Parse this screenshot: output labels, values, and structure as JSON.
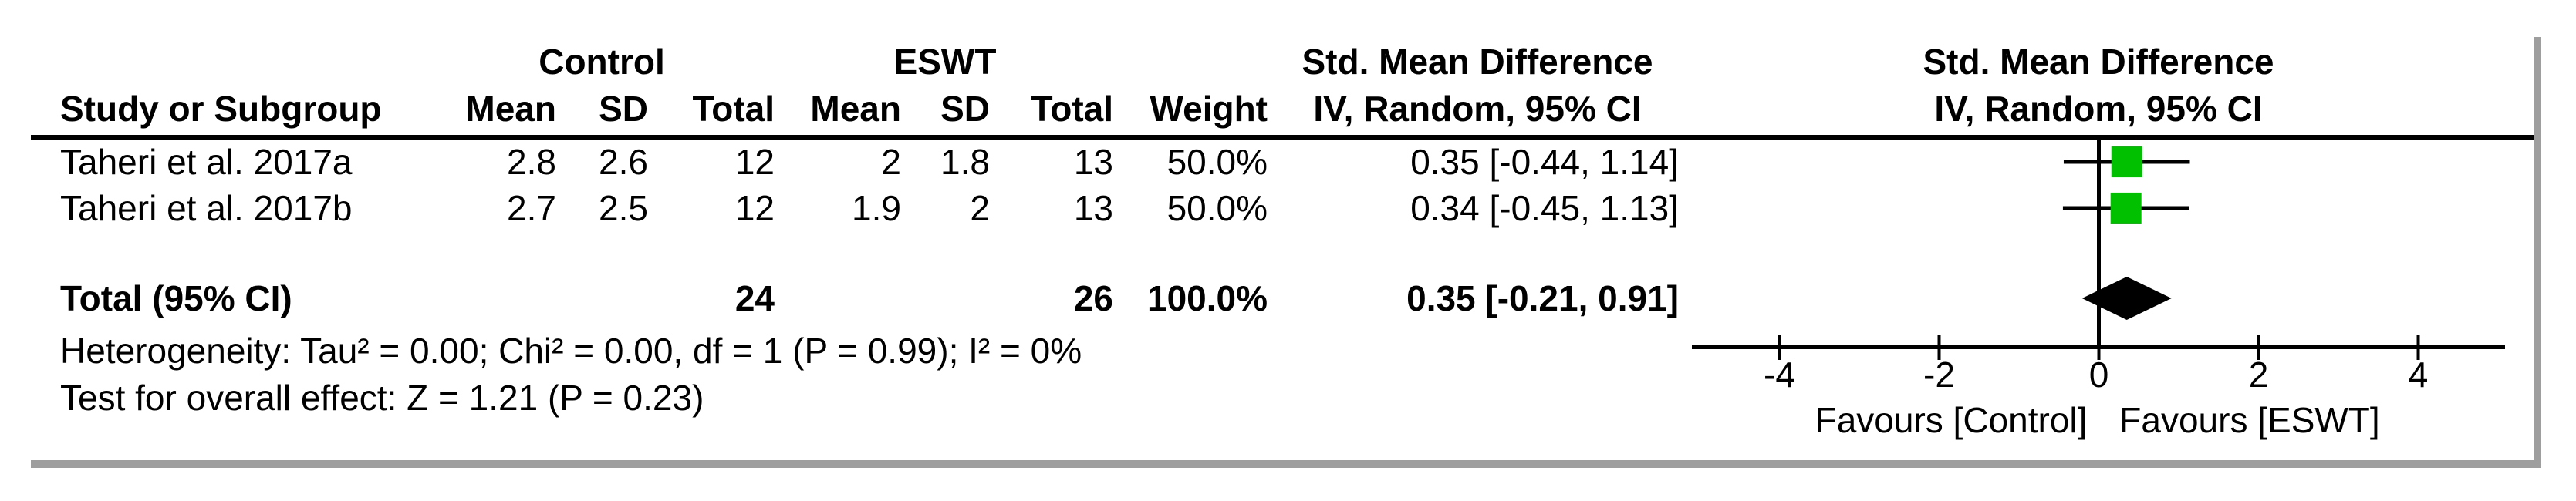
{
  "table": {
    "group_headers": {
      "group1": "Control",
      "group2": "ESWT"
    },
    "effect_header": {
      "line1": "Std. Mean Difference",
      "line2": "IV, Random, 95% CI"
    },
    "col_headers": {
      "study": "Study or Subgroup",
      "mean": "Mean",
      "sd": "SD",
      "total": "Total",
      "weight": "Weight"
    },
    "rows": [
      {
        "study": "Taheri et al. 2017a",
        "c_mean": "2.8",
        "c_sd": "2.6",
        "c_total": "12",
        "e_mean": "2",
        "e_sd": "1.8",
        "e_total": "13",
        "weight": "50.0%",
        "ci": "0.35 [-0.44, 1.14]"
      },
      {
        "study": "Taheri et al. 2017b",
        "c_mean": "2.7",
        "c_sd": "2.5",
        "c_total": "12",
        "e_mean": "1.9",
        "e_sd": "2",
        "e_total": "13",
        "weight": "50.0%",
        "ci": "0.34 [-0.45, 1.13]"
      }
    ],
    "total_row": {
      "label": "Total (95% CI)",
      "c_total": "24",
      "e_total": "26",
      "weight": "100.0%",
      "ci": "0.35 [-0.21, 0.91]"
    },
    "footnotes": {
      "heterogeneity": "Heterogeneity: Tau² = 0.00; Chi² = 0.00, df = 1 (P = 0.99); I² = 0%",
      "overall_effect": "Test for overall effect: Z = 1.21 (P = 0.23)"
    }
  },
  "chart_data": {
    "type": "forest",
    "title": "Std. Mean Difference",
    "subtitle": "IV, Random, 95% CI",
    "x_axis": {
      "ticks": [
        -4,
        -2,
        0,
        2,
        4
      ],
      "range": [
        -5.1,
        5.1
      ],
      "label_left": "Favours [Control]",
      "label_right": "Favours [ESWT]"
    },
    "studies": [
      {
        "name": "Taheri et al. 2017a",
        "smd": 0.35,
        "ci_low": -0.44,
        "ci_high": 1.14,
        "weight_pct": 50.0
      },
      {
        "name": "Taheri et al. 2017b",
        "smd": 0.34,
        "ci_low": -0.45,
        "ci_high": 1.13,
        "weight_pct": 50.0
      }
    ],
    "total": {
      "smd": 0.35,
      "ci_low": -0.21,
      "ci_high": 0.91
    },
    "marker_color": "#00C000",
    "diamond_color": "#000000"
  },
  "colors": {
    "marker_green": "#00C000",
    "frame_gray": "#9e9e9e",
    "text": "#000000"
  }
}
